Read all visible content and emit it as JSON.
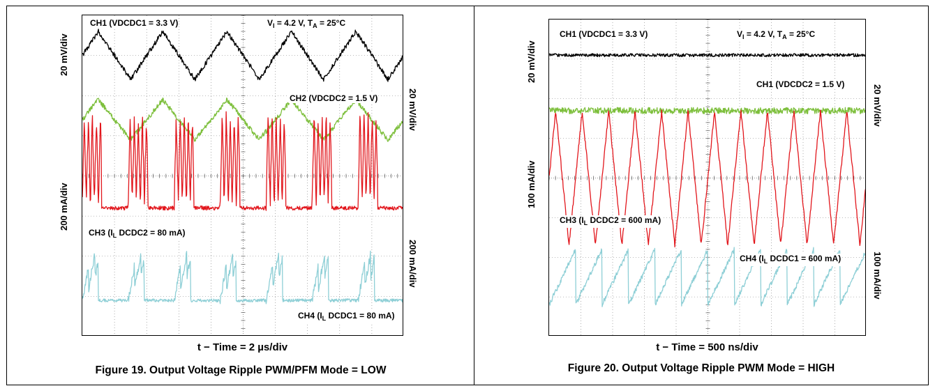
{
  "chart_data": [
    {
      "type": "line",
      "caption": "Figure 19. Output Voltage Ripple PWM/PFM Mode = LOW",
      "xlabel": "t − Time = 2 µs/div",
      "grid": true,
      "x_divisions": 10,
      "y_divisions": 8,
      "left_axis_labels": [
        "20 mV/div",
        "200 mA/div"
      ],
      "right_axis_labels": [
        "20 mV/div",
        "200 mA/div"
      ],
      "annotations": {
        "ch1": "CH1 (VDCDC1 = 3.3 V)",
        "conditions_v": "V",
        "conditions_v_sub": "I",
        "conditions_rest": " = 4.2 V,  T",
        "conditions_t_sub": "A",
        "conditions_end": " = 25°C",
        "ch2": "CH2 (VDCDC2 = 1.5 V)",
        "ch3_pre": "CH3 (I",
        "ch3_sub": "L",
        "ch3_post": " DCDC2 = 80 mA)",
        "ch4_pre": "CH4 (I",
        "ch4_sub": "L",
        "ch4_post": " DCDC1 = 80 mA)"
      },
      "series": [
        {
          "color": "#000000",
          "shape": "triangle",
          "cycles_per_screen": 5,
          "amplitude_div": 0.6
        },
        {
          "color": "#7dbf3c",
          "shape": "triangle",
          "cycles_per_screen": 5,
          "amplitude_div": 0.5
        },
        {
          "color": "#e2161c",
          "shape": "pfm_current_bursts",
          "bursts_per_screen": 7
        },
        {
          "color": "#8ecfd6",
          "shape": "pfm_current_sawtooth",
          "bursts_per_screen": 7
        }
      ]
    },
    {
      "type": "line",
      "caption": "Figure 20. Output Voltage Ripple PWM Mode = HIGH",
      "xlabel": "t − Time = 500 ns/div",
      "grid": true,
      "x_divisions": 10,
      "y_divisions": 8,
      "left_axis_labels": [
        "20 mV/div",
        "100 mA/div"
      ],
      "right_axis_labels": [
        "20 mV/div",
        "100 mA/div"
      ],
      "annotations": {
        "ch1": "CH1 (VDCDC1 = 3.3 V)",
        "conditions_v": "V",
        "conditions_v_sub": "I",
        "conditions_rest": " = 4.2 V,  T",
        "conditions_t_sub": "A",
        "conditions_end": " = 25°C",
        "ch2": "CH1 (VDCDC2 = 1.5 V)",
        "ch3_pre": "CH3 (I",
        "ch3_sub": "L",
        "ch3_post": " DCDC2 = 600 mA)",
        "ch4_pre": "CH4 (I",
        "ch4_sub": "L",
        "ch4_post": " DCDC1 = 600 mA)"
      },
      "series": [
        {
          "color": "#000000",
          "shape": "flat_noise",
          "amplitude_div": 0.05
        },
        {
          "color": "#7dbf3c",
          "shape": "flat_noise",
          "amplitude_div": 0.1
        },
        {
          "color": "#e2161c",
          "shape": "triangle",
          "cycles_per_screen": 12,
          "amplitude_div": 1.7
        },
        {
          "color": "#8ecfd6",
          "shape": "sawtooth",
          "cycles_per_screen": 12,
          "amplitude_div": 0.7
        }
      ]
    }
  ]
}
